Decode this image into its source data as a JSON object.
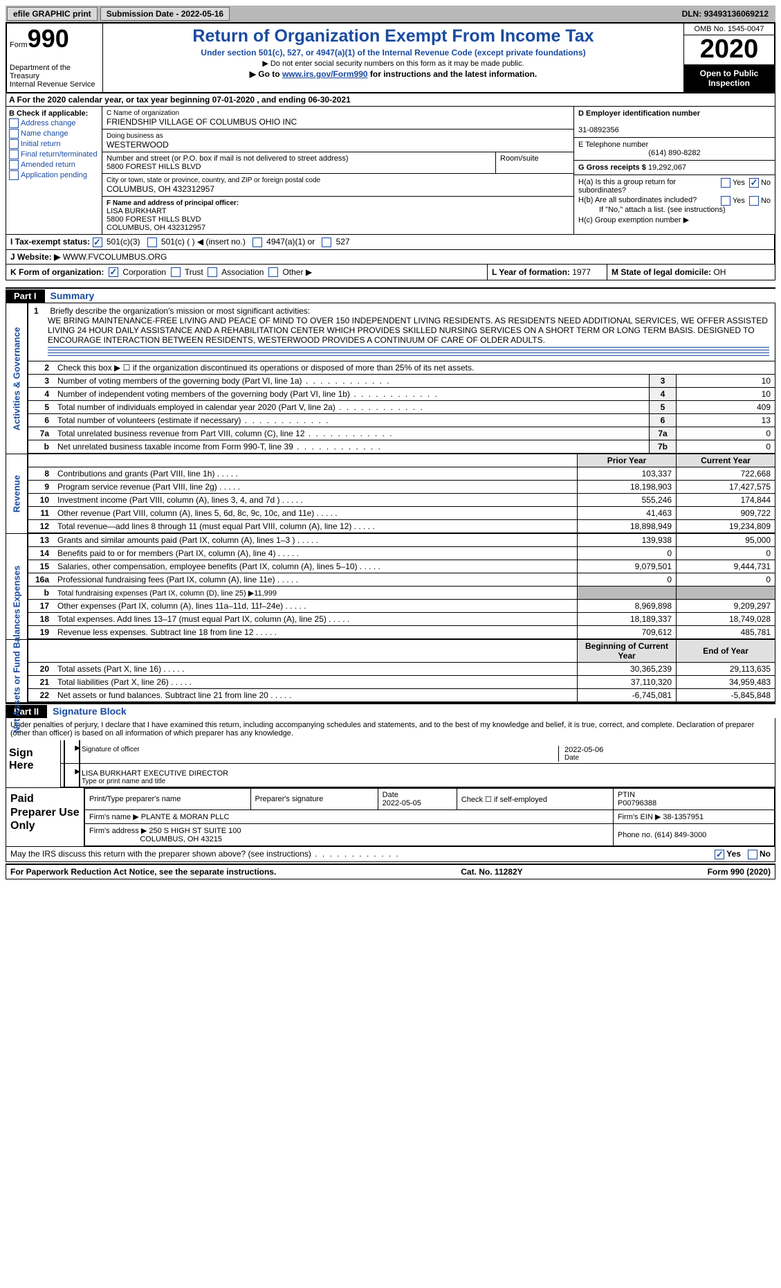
{
  "topbar": {
    "efile": "efile GRAPHIC print",
    "sub_date_label": "Submission Date - ",
    "sub_date": "2022-05-16",
    "dln_label": "DLN: ",
    "dln": "93493136069212"
  },
  "header": {
    "form_label": "Form",
    "form_num": "990",
    "title": "Return of Organization Exempt From Income Tax",
    "subtitle": "Under section 501(c), 527, or 4947(a)(1) of the Internal Revenue Code (except private foundations)",
    "note1": "▶ Do not enter social security numbers on this form as it may be made public.",
    "note2_pre": "▶ Go to ",
    "note2_link": "www.irs.gov/Form990",
    "note2_post": " for instructions and the latest information.",
    "dept": "Department of the Treasury\nInternal Revenue Service",
    "omb": "OMB No. 1545-0047",
    "year": "2020",
    "inspection": "Open to Public Inspection"
  },
  "row_a": "A  For the 2020 calendar year, or tax year beginning 07-01-2020   , and ending 06-30-2021",
  "box_b": {
    "label": "B Check if applicable:",
    "opts": [
      "Address change",
      "Name change",
      "Initial return",
      "Final return/terminated",
      "Amended return",
      "Application pending"
    ]
  },
  "box_c": {
    "name_label": "C Name of organization",
    "name": "FRIENDSHIP VILLAGE OF COLUMBUS OHIO INC",
    "dba_label": "Doing business as",
    "dba": "WESTERWOOD",
    "street_label": "Number and street (or P.O. box if mail is not delivered to street address)",
    "room_label": "Room/suite",
    "street": "5800 FOREST HILLS BLVD",
    "city_label": "City or town, state or province, country, and ZIP or foreign postal code",
    "city": "COLUMBUS, OH  432312957"
  },
  "box_d": {
    "label": "D Employer identification number",
    "value": "31-0892356"
  },
  "box_e": {
    "label": "E Telephone number",
    "value": "(614) 890-8282"
  },
  "box_g": {
    "label": "G Gross receipts $ ",
    "value": "19,292,067"
  },
  "box_f": {
    "label": "F Name and address of principal officer:",
    "name": "LISA BURKHART",
    "addr1": "5800 FOREST HILLS BLVD",
    "addr2": "COLUMBUS, OH  432312957"
  },
  "box_h": {
    "a_label": "H(a)  Is this a group return for subordinates?",
    "b_label": "H(b)  Are all subordinates included?",
    "note": "If \"No,\" attach a list. (see instructions)",
    "c_label": "H(c)  Group exemption number ▶",
    "yes": "Yes",
    "no": "No"
  },
  "box_i": {
    "label": "I   Tax-exempt status:",
    "opt1": "501(c)(3)",
    "opt2": "501(c) (  ) ◀ (insert no.)",
    "opt3": "4947(a)(1) or",
    "opt4": "527"
  },
  "box_j": {
    "label": "J   Website: ▶ ",
    "value": "WWW.FVCOLUMBUS.ORG"
  },
  "box_k": {
    "label": "K Form of organization:",
    "opts": [
      "Corporation",
      "Trust",
      "Association",
      "Other ▶"
    ],
    "l_label": "L Year of formation: ",
    "l_value": "1977",
    "m_label": "M State of legal domicile: ",
    "m_value": "OH"
  },
  "partI": {
    "tag": "Part I",
    "title": "Summary"
  },
  "mission": {
    "num": "1",
    "label": "Briefly describe the organization's mission or most significant activities:",
    "text": "WE BRING MAINTENANCE-FREE LIVING AND PEACE OF MIND TO OVER 150 INDEPENDENT LIVING RESIDENTS. AS RESIDENTS NEED ADDITIONAL SERVICES, WE OFFER ASSISTED LIVING 24 HOUR DAILY ASSISTANCE AND A REHABILITATION CENTER WHICH PROVIDES SKILLED NURSING SERVICES ON A SHORT TERM OR LONG TERM BASIS. DESIGNED TO ENCOURAGE INTERACTION BETWEEN RESIDENTS, WESTERWOOD PROVIDES A CONTINUUM OF CARE OF OLDER ADULTS."
  },
  "gov_rows": [
    {
      "n": "2",
      "desc": "Check this box ▶ ☐  if the organization discontinued its operations or disposed of more than 25% of its net assets.",
      "box": "",
      "val": ""
    },
    {
      "n": "3",
      "desc": "Number of voting members of the governing body (Part VI, line 1a)",
      "box": "3",
      "val": "10"
    },
    {
      "n": "4",
      "desc": "Number of independent voting members of the governing body (Part VI, line 1b)",
      "box": "4",
      "val": "10"
    },
    {
      "n": "5",
      "desc": "Total number of individuals employed in calendar year 2020 (Part V, line 2a)",
      "box": "5",
      "val": "409"
    },
    {
      "n": "6",
      "desc": "Total number of volunteers (estimate if necessary)",
      "box": "6",
      "val": "13"
    },
    {
      "n": "7a",
      "desc": "Total unrelated business revenue from Part VIII, column (C), line 12",
      "box": "7a",
      "val": "0"
    },
    {
      "n": "b",
      "desc": "Net unrelated business taxable income from Form 990-T, line 39",
      "box": "7b",
      "val": "0"
    }
  ],
  "rev_hdr": {
    "prior": "Prior Year",
    "current": "Current Year"
  },
  "revenue": [
    {
      "n": "8",
      "desc": "Contributions and grants (Part VIII, line 1h)",
      "p": "103,337",
      "c": "722,668"
    },
    {
      "n": "9",
      "desc": "Program service revenue (Part VIII, line 2g)",
      "p": "18,198,903",
      "c": "17,427,575"
    },
    {
      "n": "10",
      "desc": "Investment income (Part VIII, column (A), lines 3, 4, and 7d )",
      "p": "555,246",
      "c": "174,844"
    },
    {
      "n": "11",
      "desc": "Other revenue (Part VIII, column (A), lines 5, 6d, 8c, 9c, 10c, and 11e)",
      "p": "41,463",
      "c": "909,722"
    },
    {
      "n": "12",
      "desc": "Total revenue—add lines 8 through 11 (must equal Part VIII, column (A), line 12)",
      "p": "18,898,949",
      "c": "19,234,809"
    }
  ],
  "expenses": [
    {
      "n": "13",
      "desc": "Grants and similar amounts paid (Part IX, column (A), lines 1–3 )",
      "p": "139,938",
      "c": "95,000"
    },
    {
      "n": "14",
      "desc": "Benefits paid to or for members (Part IX, column (A), line 4)",
      "p": "0",
      "c": "0"
    },
    {
      "n": "15",
      "desc": "Salaries, other compensation, employee benefits (Part IX, column (A), lines 5–10)",
      "p": "9,079,501",
      "c": "9,444,731"
    },
    {
      "n": "16a",
      "desc": "Professional fundraising fees (Part IX, column (A), line 11e)",
      "p": "0",
      "c": "0"
    },
    {
      "n": "b",
      "desc": "Total fundraising expenses (Part IX, column (D), line 25) ▶11,999",
      "shade": true
    },
    {
      "n": "17",
      "desc": "Other expenses (Part IX, column (A), lines 11a–11d, 11f–24e)",
      "p": "8,969,898",
      "c": "9,209,297"
    },
    {
      "n": "18",
      "desc": "Total expenses. Add lines 13–17 (must equal Part IX, column (A), line 25)",
      "p": "18,189,337",
      "c": "18,749,028"
    },
    {
      "n": "19",
      "desc": "Revenue less expenses. Subtract line 18 from line 12",
      "p": "709,612",
      "c": "485,781"
    }
  ],
  "net_hdr": {
    "begin": "Beginning of Current Year",
    "end": "End of Year"
  },
  "netassets": [
    {
      "n": "20",
      "desc": "Total assets (Part X, line 16)",
      "p": "30,365,239",
      "c": "29,113,635"
    },
    {
      "n": "21",
      "desc": "Total liabilities (Part X, line 26)",
      "p": "37,110,320",
      "c": "34,959,483"
    },
    {
      "n": "22",
      "desc": "Net assets or fund balances. Subtract line 21 from line 20",
      "p": "-6,745,081",
      "c": "-5,845,848"
    }
  ],
  "side_labels": {
    "gov": "Activities & Governance",
    "rev": "Revenue",
    "exp": "Expenses",
    "net": "Net Assets or Fund Balances"
  },
  "partII": {
    "tag": "Part II",
    "title": "Signature Block"
  },
  "sig": {
    "intro": "Under penalties of perjury, I declare that I have examined this return, including accompanying schedules and statements, and to the best of my knowledge and belief, it is true, correct, and complete. Declaration of preparer (other than officer) is based on all information of which preparer has any knowledge.",
    "sign_here": "Sign Here",
    "sig_of_officer": "Signature of officer",
    "date": "2022-05-06",
    "date_label": "Date",
    "name": "LISA BURKHART EXECUTIVE DIRECTOR",
    "name_label": "Type or print name and title"
  },
  "prep": {
    "label": "Paid Preparer Use Only",
    "col1": "Print/Type preparer's name",
    "col2": "Preparer's signature",
    "col3_label": "Date",
    "col3": "2022-05-05",
    "col4": "Check ☐ if self-employed",
    "col5_label": "PTIN",
    "col5": "P00796388",
    "firm_name_label": "Firm's name      ▶ ",
    "firm_name": "PLANTE & MORAN PLLC",
    "firm_ein_label": "Firm's EIN ▶ ",
    "firm_ein": "38-1357951",
    "firm_addr_label": "Firm's address ▶ ",
    "firm_addr": "250 S HIGH ST SUITE 100",
    "firm_addr2": "COLUMBUS, OH  43215",
    "phone_label": "Phone no. ",
    "phone": "(614) 849-3000"
  },
  "discuss": {
    "text": "May the IRS discuss this return with the preparer shown above? (see instructions)",
    "yes": "Yes",
    "no": "No"
  },
  "footer": {
    "left": "For Paperwork Reduction Act Notice, see the separate instructions.",
    "center": "Cat. No. 11282Y",
    "right": "Form 990 (2020)"
  }
}
